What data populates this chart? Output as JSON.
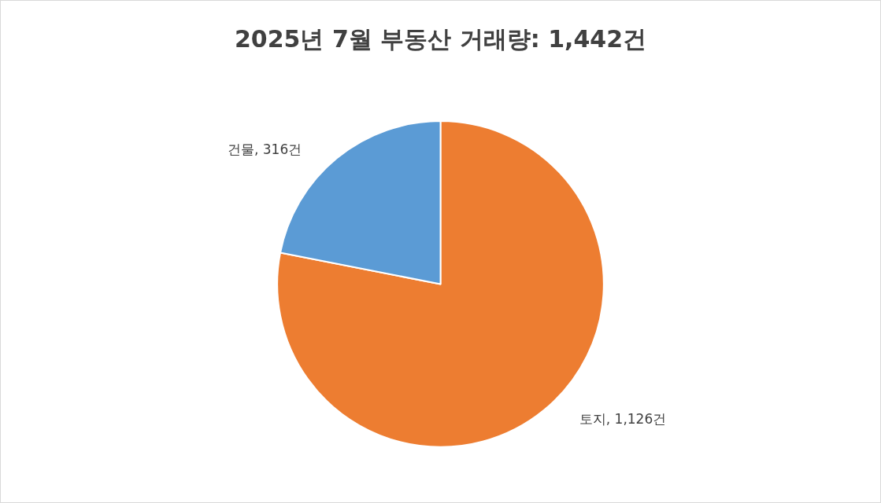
{
  "chart_data": {
    "type": "pie",
    "title": "2025년 7월 부동산 거래량: 1,442건",
    "categories": [
      "토지",
      "건물"
    ],
    "values": [
      1126,
      316
    ],
    "colors": [
      "#ed7d31",
      "#5b9bd5"
    ],
    "value_labels": [
      "1,126건",
      "316건"
    ],
    "legend": false
  }
}
